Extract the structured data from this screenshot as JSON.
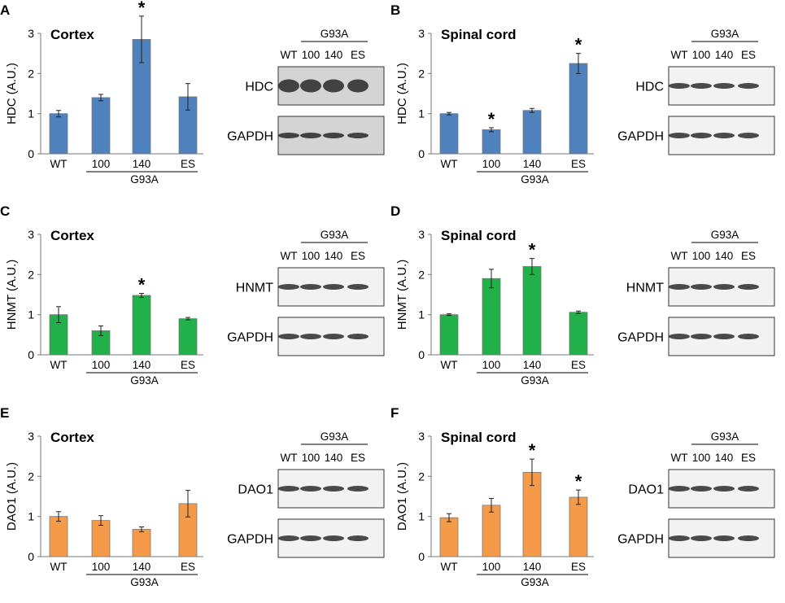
{
  "figure": {
    "bar_outline": "#7a7a7a",
    "blot_frame": "#333333"
  },
  "panels": [
    {
      "id": "A",
      "region": "Cortex",
      "ylabel": "HDC (A.U.)",
      "protein": "HDC",
      "loading": "GAPDH",
      "color": "#4f81bd",
      "blot_bg": "#d4d4d4",
      "col": 0,
      "row": 0,
      "band": 0.55,
      "loadBand": 0.55
    },
    {
      "id": "B",
      "region": "Spinal cord",
      "ylabel": "HDC (A.U.)",
      "protein": "HDC",
      "loading": "GAPDH",
      "color": "#4f81bd",
      "blot_bg": "#f2f2f2",
      "col": 1,
      "row": 0,
      "band": 0.22,
      "loadBand": 0.22
    },
    {
      "id": "C",
      "region": "Cortex",
      "ylabel": "HNMT (A.U.)",
      "protein": "HNMT",
      "loading": "GAPDH",
      "color": "#22b04a",
      "blot_bg": "#f2f2f2",
      "col": 0,
      "row": 1,
      "band": 0.2,
      "loadBand": 0.22
    },
    {
      "id": "D",
      "region": "Spinal cord",
      "ylabel": "HNMT (A.U.)",
      "protein": "HNMT",
      "loading": "GAPDH",
      "color": "#22b04a",
      "blot_bg": "#f2f2f2",
      "col": 1,
      "row": 1,
      "band": 0.22,
      "loadBand": 0.22
    },
    {
      "id": "E",
      "region": "Cortex",
      "ylabel": "DAO1 (A.U.)",
      "protein": "DAO1",
      "loading": "GAPDH",
      "color": "#f59a48",
      "blot_bg": "#f2f2f2",
      "col": 0,
      "row": 2,
      "band": 0.25,
      "loadBand": 0.22
    },
    {
      "id": "F",
      "region": "Spinal cord",
      "ylabel": "DAO1 (A.U.)",
      "protein": "DAO1",
      "loading": "GAPDH",
      "color": "#f59a48",
      "blot_bg": "#f2f2f2",
      "col": 1,
      "row": 2,
      "band": 0.25,
      "loadBand": 0.22
    }
  ],
  "lanes": [
    "WT",
    "100",
    "140",
    "ES"
  ],
  "group_label": "G93A",
  "chart_data": [
    {
      "panel": "A",
      "type": "bar",
      "title": "Cortex",
      "ylabel": "HDC (A.U.)",
      "ylim": [
        0,
        3
      ],
      "yticks": [
        0,
        1,
        2,
        3
      ],
      "categories": [
        "WT",
        "100",
        "140",
        "ES"
      ],
      "group_label": "G93A",
      "values": [
        1.0,
        1.4,
        2.85,
        1.42
      ],
      "errors": [
        0.08,
        0.08,
        0.58,
        0.33
      ],
      "significant": [
        false,
        false,
        true,
        false
      ]
    },
    {
      "panel": "B",
      "type": "bar",
      "title": "Spinal cord",
      "ylabel": "HDC (A.U.)",
      "ylim": [
        0,
        3
      ],
      "yticks": [
        0,
        1,
        2,
        3
      ],
      "categories": [
        "WT",
        "100",
        "140",
        "ES"
      ],
      "group_label": "G93A",
      "values": [
        1.0,
        0.6,
        1.08,
        2.25
      ],
      "errors": [
        0.03,
        0.05,
        0.05,
        0.25
      ],
      "significant": [
        false,
        true,
        false,
        true
      ]
    },
    {
      "panel": "C",
      "type": "bar",
      "title": "Cortex",
      "ylabel": "HNMT (A.U.)",
      "ylim": [
        0,
        3
      ],
      "yticks": [
        0,
        1,
        2,
        3
      ],
      "categories": [
        "WT",
        "100",
        "140",
        "ES"
      ],
      "group_label": "G93A",
      "values": [
        1.0,
        0.6,
        1.48,
        0.9
      ],
      "errors": [
        0.2,
        0.12,
        0.05,
        0.03
      ],
      "significant": [
        false,
        false,
        true,
        false
      ]
    },
    {
      "panel": "D",
      "type": "bar",
      "title": "Spinal cord",
      "ylabel": "HNMT (A.U.)",
      "ylim": [
        0,
        3
      ],
      "yticks": [
        0,
        1,
        2,
        3
      ],
      "categories": [
        "WT",
        "100",
        "140",
        "ES"
      ],
      "group_label": "G93A",
      "values": [
        1.0,
        1.9,
        2.2,
        1.06
      ],
      "errors": [
        0.02,
        0.23,
        0.2,
        0.03
      ],
      "significant": [
        false,
        false,
        true,
        false
      ]
    },
    {
      "panel": "E",
      "type": "bar",
      "title": "Cortex",
      "ylabel": "DAO1 (A.U.)",
      "ylim": [
        0,
        3
      ],
      "yticks": [
        0,
        1,
        2,
        3
      ],
      "categories": [
        "WT",
        "100",
        "140",
        "ES"
      ],
      "group_label": "G93A",
      "values": [
        1.0,
        0.9,
        0.68,
        1.32
      ],
      "errors": [
        0.12,
        0.12,
        0.06,
        0.33
      ],
      "significant": [
        false,
        false,
        false,
        false
      ]
    },
    {
      "panel": "F",
      "type": "bar",
      "title": "Spinal cord",
      "ylabel": "DAO1 (A.U.)",
      "ylim": [
        0,
        3
      ],
      "yticks": [
        0,
        1,
        2,
        3
      ],
      "categories": [
        "WT",
        "100",
        "140",
        "ES"
      ],
      "group_label": "G93A",
      "values": [
        0.97,
        1.28,
        2.1,
        1.48
      ],
      "errors": [
        0.1,
        0.17,
        0.33,
        0.18
      ],
      "significant": [
        false,
        false,
        true,
        true
      ]
    }
  ]
}
